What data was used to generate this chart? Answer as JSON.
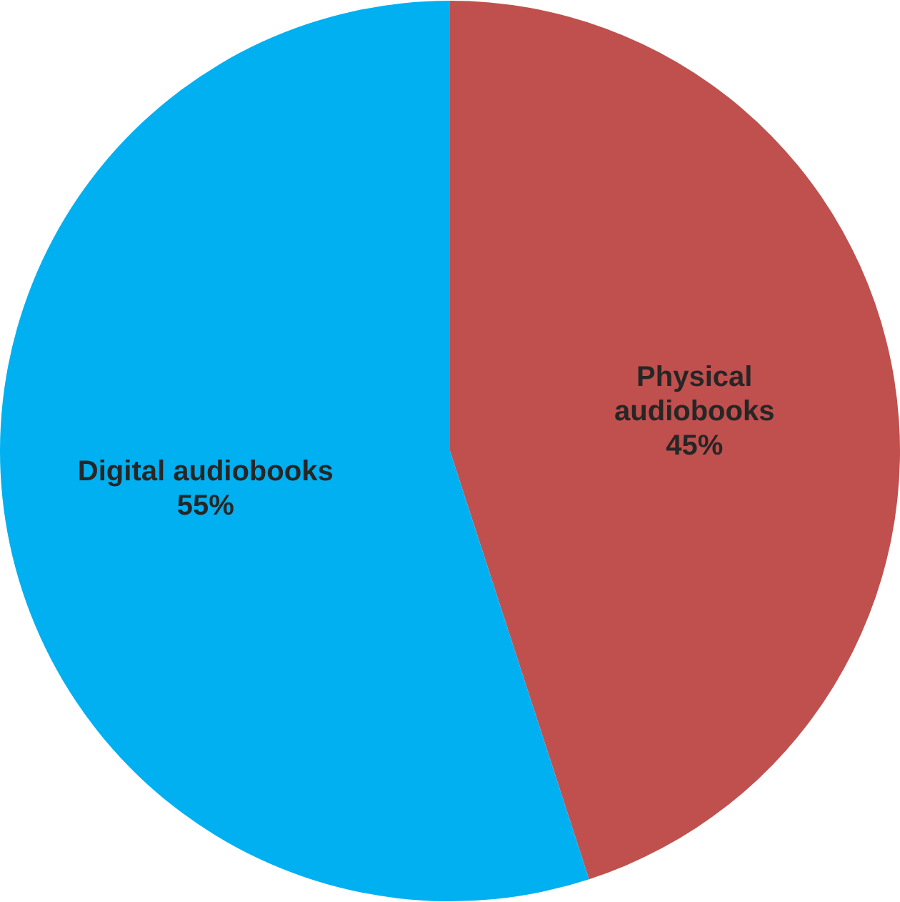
{
  "chart_data": {
    "type": "pie",
    "categories": [
      "Physical audiobooks",
      "Digital audiobooks"
    ],
    "values": [
      45,
      55
    ],
    "colors": [
      "#c0504d",
      "#00b0f0"
    ],
    "value_labels": [
      "45%",
      "55%"
    ],
    "legend": false
  }
}
